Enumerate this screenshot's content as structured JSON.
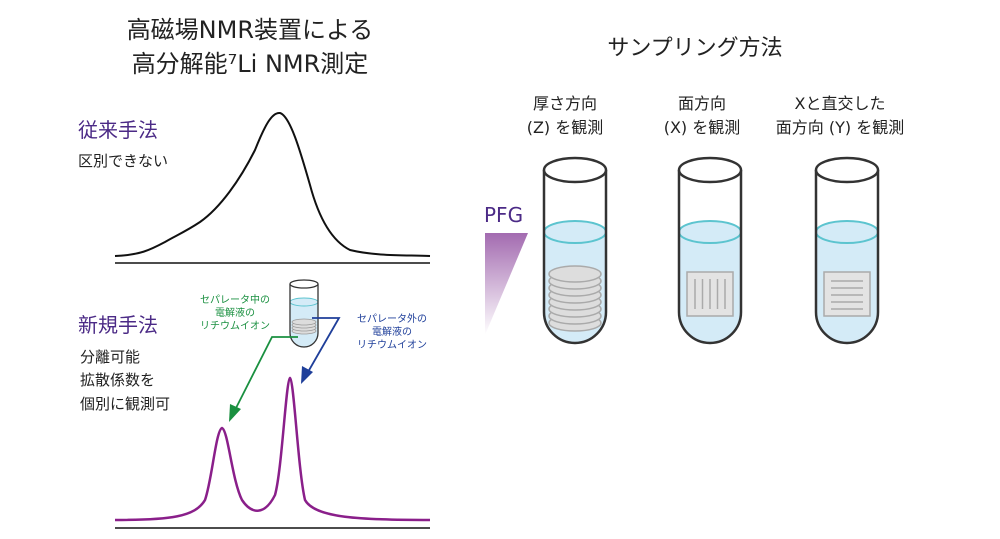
{
  "title": {
    "line1": "高磁場NMR装置による",
    "line2": "高分解能⁷Li  NMR測定"
  },
  "conventional": {
    "heading": "従来手法",
    "note": "区別できない"
  },
  "new_method": {
    "heading": "新規手法",
    "notes": [
      "分離可能",
      "拡散係数を",
      "個別に観測可"
    ]
  },
  "labels": {
    "inside": [
      "セパレータ中の",
      "電解液の",
      "リチウムイオン"
    ],
    "outside": [
      "セパレータ外の",
      "電解液の",
      "リチウムイオン"
    ]
  },
  "sampling": {
    "title": "サンプリング方法",
    "columns": [
      {
        "lines": [
          "厚さ方向",
          "(Z) を観測"
        ]
      },
      {
        "lines": [
          "面方向",
          "(X) を観測"
        ]
      },
      {
        "lines": [
          "Xと直交した",
          "面方向 (Y) を観測"
        ]
      }
    ],
    "pfg_label": "PFG"
  },
  "colors": {
    "purple": "#4b2a86",
    "spectrum": "#8a1f8a",
    "green": "#1a9040",
    "blue": "#1f3f9a",
    "liquid": "#d4ebf7",
    "meniscus": "#5cc4cf"
  }
}
